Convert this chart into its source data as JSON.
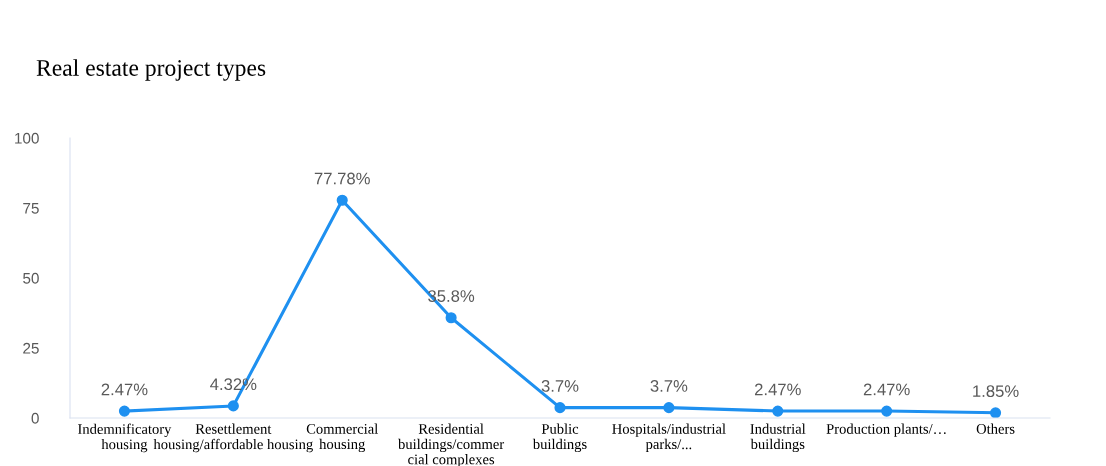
{
  "chart_data": {
    "type": "line",
    "title": "Real estate project types",
    "categories": [
      "Indemnificatory\nhousing",
      "Resettlement\nhousing/affordable housing",
      "Commercial\nhousing",
      "Residential\nbuildings/commer\ncial complexes",
      "Public\nbuildings",
      "Hospitals/industrial\nparks/...",
      "Industrial\nbuildings",
      "Production plants/…",
      "Others"
    ],
    "series": [
      {
        "color": "#1e90f0",
        "values": [
          2.47,
          4.32,
          77.78,
          35.8,
          3.7,
          3.7,
          2.47,
          2.47,
          1.85
        ]
      }
    ],
    "value_labels": [
      "2.47%",
      "4.32%",
      "77.78%",
      "35.8%",
      "3.7%",
      "3.7%",
      "2.47%",
      "2.47%",
      "1.85%"
    ],
    "ylim": [
      0,
      100
    ],
    "yticks": [
      0,
      25,
      50,
      75,
      100
    ],
    "grid": false,
    "marker": "circle",
    "line_style": "solid"
  }
}
